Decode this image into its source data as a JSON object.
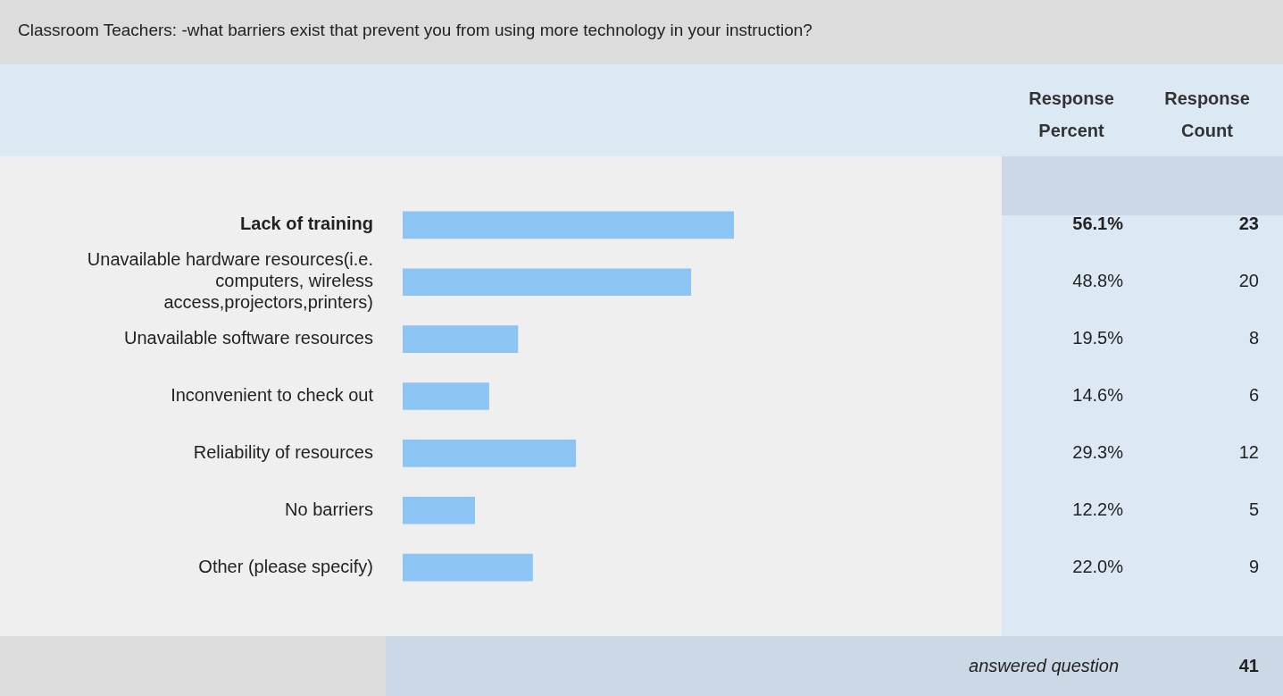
{
  "chart_data": {
    "type": "bar",
    "orientation": "horizontal",
    "title": "Classroom Teachers: -what barriers exist that prevent you from using more technology in your instruction?",
    "categories": [
      "Lack of training",
      "Unavailable hardware resources(i.e. computers, wireless access,projectors,printers)",
      "Unavailable software resources",
      "Inconvenient to check out",
      "Reliability of resources",
      "No barriers",
      "Other (please specify)"
    ],
    "values": [
      56.1,
      48.8,
      19.5,
      14.6,
      29.3,
      12.2,
      22.0
    ],
    "value_labels": [
      "56.1%",
      "48.8%",
      "19.5%",
      "14.6%",
      "29.3%",
      "12.2%",
      "22.0%"
    ],
    "color": "#8cc4f4",
    "tick_labels": "y",
    "legend": false,
    "annotations": [
      "Response Percent",
      "Response Count",
      "23",
      "20",
      "8",
      "6",
      "12",
      "5",
      "9",
      "answered question",
      "41"
    ]
  }
}
